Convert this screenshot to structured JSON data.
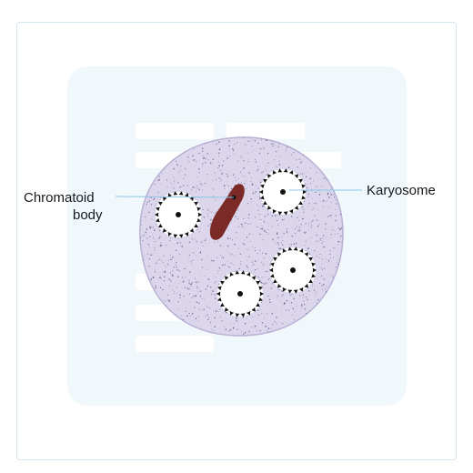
{
  "labels": {
    "chromatoid_line1": "Chromatoid",
    "chromatoid_line2": "body",
    "karyosome": "Karyosome"
  },
  "colors": {
    "cyst_fill": "#dcd6ec",
    "cyst_stroke": "#b9b0d3",
    "speckle": "#5a4f84",
    "chromatoid_body": "#7c2a27",
    "leader_line": "#8cc6e6",
    "panel": "#f1f8fc",
    "frame_border": "#d5e6ee"
  },
  "nuclei_count": 4
}
